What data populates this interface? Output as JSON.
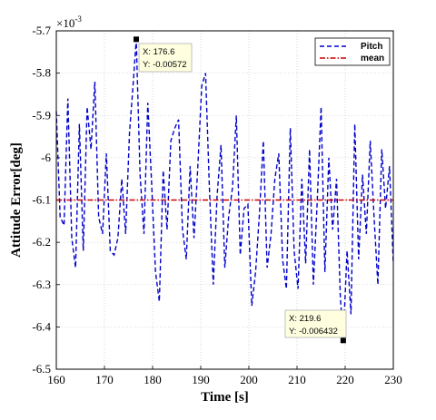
{
  "chart_data": {
    "type": "line",
    "xlabel": "Time [s]",
    "ylabel": "Attitude Error[deg]",
    "xlim": [
      160,
      230
    ],
    "ylim": [
      -6.5,
      -5.7
    ],
    "y_multiplier_label": "×10",
    "y_multiplier_exponent": "-3",
    "x_ticks": [
      "160",
      "170",
      "180",
      "190",
      "200",
      "210",
      "220",
      "230"
    ],
    "y_ticks": [
      "-5.7",
      "-5.8",
      "-5.9",
      "-6",
      "-6.1",
      "-6.2",
      "-6.3",
      "-6.4",
      "-6.5"
    ],
    "grid": true,
    "legend_position": "top-right",
    "series": [
      {
        "name": "Pitch",
        "style": "dashed",
        "color": "#0000CC",
        "x": [
          160,
          160.8,
          161.6,
          162.4,
          163.2,
          164.0,
          164.8,
          165.6,
          166.4,
          167.2,
          168.0,
          168.8,
          169.6,
          170.4,
          171.2,
          172.0,
          172.8,
          173.6,
          174.4,
          175.2,
          176.0,
          176.6,
          177.4,
          178.2,
          179.0,
          179.8,
          180.6,
          181.4,
          182.2,
          183.0,
          183.8,
          184.6,
          185.4,
          186.2,
          187.0,
          187.8,
          188.6,
          189.4,
          190.2,
          191.0,
          191.8,
          192.6,
          193.4,
          194.2,
          195.0,
          195.8,
          196.6,
          197.4,
          198.2,
          199.0,
          199.8,
          200.6,
          201.4,
          202.2,
          203.0,
          203.8,
          204.6,
          205.4,
          206.2,
          207.0,
          207.8,
          208.6,
          209.4,
          210.2,
          211.0,
          211.8,
          212.6,
          213.4,
          214.2,
          215.0,
          215.8,
          216.6,
          217.4,
          218.2,
          219.0,
          219.6,
          220.4,
          221.2,
          222.0,
          222.8,
          223.6,
          224.4,
          225.2,
          226.0,
          226.8,
          227.6,
          228.4,
          229.2,
          230.0
        ],
        "y": [
          -5.89,
          -6.14,
          -6.16,
          -5.86,
          -6.19,
          -6.26,
          -5.92,
          -6.22,
          -5.88,
          -5.98,
          -5.82,
          -6.14,
          -6.18,
          -5.99,
          -6.22,
          -6.23,
          -6.19,
          -6.05,
          -6.18,
          -5.94,
          -5.82,
          -5.72,
          -6.04,
          -6.18,
          -5.87,
          -6.06,
          -6.27,
          -6.34,
          -6.03,
          -6.17,
          -5.96,
          -5.93,
          -5.91,
          -6.17,
          -6.24,
          -6.02,
          -6.19,
          -6.02,
          -5.83,
          -5.8,
          -6.07,
          -6.3,
          -6.09,
          -5.97,
          -6.26,
          -6.14,
          -6.07,
          -5.9,
          -6.23,
          -6.12,
          -6.11,
          -6.35,
          -6.27,
          -6.13,
          -5.96,
          -6.26,
          -6.18,
          -6.05,
          -5.99,
          -6.24,
          -6.31,
          -5.93,
          -6.22,
          -6.31,
          -6.05,
          -6.25,
          -5.98,
          -6.3,
          -6.1,
          -5.88,
          -6.27,
          -6.0,
          -6.17,
          -6.05,
          -6.33,
          -6.43,
          -6.22,
          -6.37,
          -5.92,
          -6.24,
          -6.04,
          -6.18,
          -5.96,
          -6.14,
          -6.3,
          -5.98,
          -6.12,
          -6.02,
          -6.25
        ]
      },
      {
        "name": "mean",
        "style": "dashdot",
        "color": "#CC0000",
        "x": [
          160,
          230
        ],
        "y": [
          -6.1,
          -6.1
        ]
      }
    ],
    "annotations": [
      {
        "x_text": "X: 176.6",
        "y_text": "Y: -0.00572",
        "x": 176.6,
        "y": -5.72
      },
      {
        "x_text": "X: 219.6",
        "y_text": "Y: -0.006432",
        "x": 219.6,
        "y": -6.432
      }
    ]
  }
}
